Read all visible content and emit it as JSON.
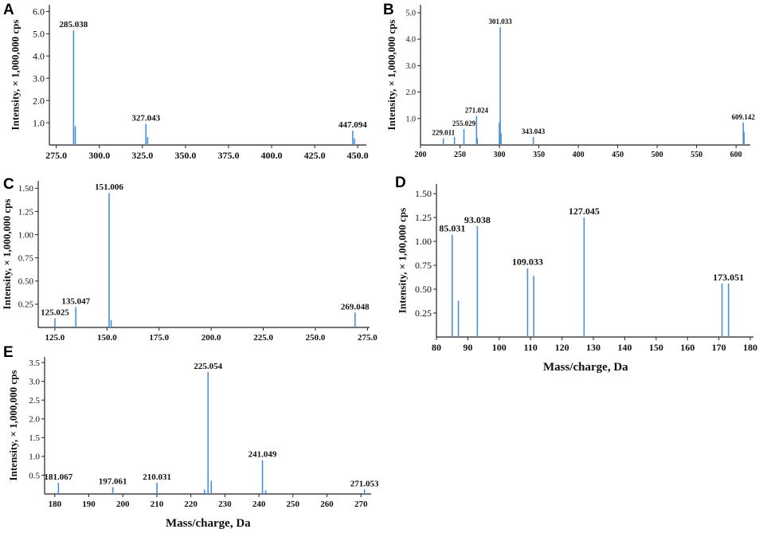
{
  "figure": {
    "x_axis_title": "Mass/charge, Da",
    "line_color": "#4a90d9",
    "axis_color": "#222222",
    "text_color": "#111111"
  },
  "chart_data": [
    {
      "panel": "A",
      "type": "bar",
      "ylabel": "Intensity, × 1,000,000 cps",
      "xlabel": "",
      "xlim": [
        271,
        455
      ],
      "ylim": [
        0,
        6.3
      ],
      "xticks": [
        "275.0",
        "300.0",
        "325.0",
        "350.0",
        "375.0",
        "400.0",
        "425.0",
        "450.0"
      ],
      "yticks": [
        "1.0",
        "2.0",
        "3.0",
        "4.0",
        "5.0",
        "6.0"
      ],
      "peaks": [
        {
          "x": 285.038,
          "y": 5.15,
          "label": "285.038"
        },
        {
          "x": 286.04,
          "y": 0.85
        },
        {
          "x": 327.043,
          "y": 0.95,
          "label": "327.043"
        },
        {
          "x": 328.05,
          "y": 0.35
        },
        {
          "x": 447.094,
          "y": 0.65,
          "label": "447.094"
        },
        {
          "x": 448.1,
          "y": 0.3
        }
      ]
    },
    {
      "panel": "B",
      "type": "bar",
      "ylabel": "Intensity, × 1,000,000 cps",
      "xlabel": "",
      "xlim": [
        200,
        618
      ],
      "ylim": [
        0,
        5.3
      ],
      "xticks": [
        "200",
        "250",
        "300",
        "350",
        "400",
        "450",
        "500",
        "550",
        "600"
      ],
      "yticks": [
        "1.0",
        "2.0",
        "3.0",
        "4.0",
        "5.0"
      ],
      "peaks": [
        {
          "x": 229.011,
          "y": 0.25,
          "label": "229.011"
        },
        {
          "x": 243.0,
          "y": 0.3
        },
        {
          "x": 255.029,
          "y": 0.6,
          "label": "255.029"
        },
        {
          "x": 271.024,
          "y": 1.1,
          "label": "271.024"
        },
        {
          "x": 272.0,
          "y": 0.25
        },
        {
          "x": 301.033,
          "y": 4.45,
          "label": "301.033"
        },
        {
          "x": 300.0,
          "y": 0.85
        },
        {
          "x": 302.0,
          "y": 0.45
        },
        {
          "x": 343.043,
          "y": 0.3,
          "label": "343.043"
        },
        {
          "x": 609.142,
          "y": 0.85,
          "label": "609.142"
        },
        {
          "x": 610.1,
          "y": 0.5
        }
      ]
    },
    {
      "panel": "C",
      "type": "bar",
      "ylabel": "Intensity, × 1,000,000 cps",
      "xlabel": "",
      "xlim": [
        117,
        276
      ],
      "ylim": [
        0,
        1.58
      ],
      "xticks": [
        "125.0",
        "150.0",
        "175.0",
        "200.0",
        "225.0",
        "250.0",
        "275.0"
      ],
      "yticks": [
        "0.25",
        "0.50",
        "0.75",
        "1.00",
        "1.25",
        "1.50"
      ],
      "peaks": [
        {
          "x": 125.025,
          "y": 0.1,
          "label": "125.025"
        },
        {
          "x": 135.047,
          "y": 0.22,
          "label": "135.047"
        },
        {
          "x": 151.006,
          "y": 1.45,
          "label": "151.006"
        },
        {
          "x": 152.0,
          "y": 0.08
        },
        {
          "x": 269.048,
          "y": 0.16,
          "label": "269.048"
        }
      ]
    },
    {
      "panel": "D",
      "type": "bar",
      "ylabel": "Intensity, × 1,00,000 cps",
      "xlabel": "Mass/charge, Da",
      "xlim": [
        80,
        181
      ],
      "ylim": [
        0,
        1.6
      ],
      "xticks": [
        "80",
        "90",
        "100",
        "110",
        "120",
        "130",
        "140",
        "150",
        "160",
        "170",
        "180"
      ],
      "yticks": [
        "0.25",
        "0.50",
        "0.75",
        "1.00",
        "1.25",
        "1.50"
      ],
      "peaks": [
        {
          "x": 85.031,
          "y": 1.07,
          "label": "85.031"
        },
        {
          "x": 87.0,
          "y": 0.38
        },
        {
          "x": 93.038,
          "y": 1.16,
          "label": "93.038"
        },
        {
          "x": 109.033,
          "y": 0.72,
          "label": "109.033"
        },
        {
          "x": 111.0,
          "y": 0.64
        },
        {
          "x": 127.045,
          "y": 1.25,
          "label": "127.045"
        },
        {
          "x": 171.0,
          "y": 0.56
        },
        {
          "x": 173.051,
          "y": 0.56,
          "label": "173.051"
        }
      ]
    },
    {
      "panel": "E",
      "type": "bar",
      "ylabel": "Intensity, × 1,000,000 cps",
      "xlabel": "Mass/charge, Da",
      "xlim": [
        177,
        273
      ],
      "ylim": [
        0,
        3.65
      ],
      "xticks": [
        "180",
        "190",
        "200",
        "210",
        "220",
        "230",
        "240",
        "250",
        "260",
        "270"
      ],
      "yticks": [
        "0.5",
        "1.0",
        "1.5",
        "2.0",
        "2.5",
        "3.0",
        "3.5"
      ],
      "peaks": [
        {
          "x": 181.067,
          "y": 0.3,
          "label": "181.067"
        },
        {
          "x": 197.061,
          "y": 0.18,
          "label": "197.061"
        },
        {
          "x": 210.031,
          "y": 0.3,
          "label": "210.031"
        },
        {
          "x": 224.0,
          "y": 0.12
        },
        {
          "x": 225.054,
          "y": 3.25,
          "label": "225.054"
        },
        {
          "x": 226.0,
          "y": 0.35
        },
        {
          "x": 241.049,
          "y": 0.9,
          "label": "241.049"
        },
        {
          "x": 242.0,
          "y": 0.1
        },
        {
          "x": 271.053,
          "y": 0.12,
          "label": "271.053"
        }
      ]
    }
  ]
}
